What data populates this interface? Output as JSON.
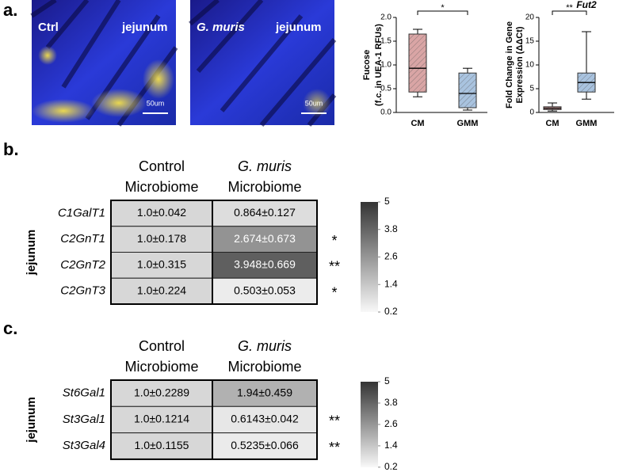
{
  "panel_a": {
    "label": "a.",
    "images": [
      {
        "left_label": "Ctrl",
        "right_label": "jejunum",
        "scale_bar": "50um"
      },
      {
        "left_label": "G. muris",
        "right_label": "jejunum",
        "scale_bar": "50um"
      }
    ],
    "fucose_plot": {
      "ylabel_1": "Fucose",
      "ylabel_2": "(f.c. in UEA-1 RFUs)",
      "categories": [
        "CM",
        "GMM"
      ],
      "ylim": [
        0,
        2.0
      ],
      "yticks": [
        {
          "value": 0,
          "label": "0.0"
        },
        {
          "value": 0.5,
          "label": "0.5"
        },
        {
          "value": 1.0,
          "label": "1.0"
        },
        {
          "value": 1.5,
          "label": "1.5"
        },
        {
          "value": 2.0,
          "label": "2.0"
        }
      ],
      "boxes": [
        {
          "min": 0.33,
          "q1": 0.43,
          "median": 0.93,
          "q3": 1.65,
          "max": 1.75,
          "color": "#d9a5a5"
        },
        {
          "min": 0.05,
          "q1": 0.1,
          "median": 0.4,
          "q3": 0.83,
          "max": 0.93,
          "color": "#a9c3df"
        }
      ],
      "significance": "*"
    },
    "fut2_plot": {
      "title": "Fut2",
      "ylabel_1": "Fold Change in Gene",
      "ylabel_2": "Expression (ΔΔCt)",
      "categories": [
        "CM",
        "GMM"
      ],
      "ylim": [
        0,
        20
      ],
      "yticks": [
        0,
        5,
        10,
        15,
        20
      ],
      "boxes": [
        {
          "min": 0.3,
          "q1": 0.6,
          "median": 0.9,
          "q3": 1.2,
          "max": 2.0,
          "color": "#d9a5a5"
        },
        {
          "min": 2.8,
          "q1": 4.3,
          "median": 6.3,
          "q3": 8.3,
          "max": 17,
          "color": "#a9c3df"
        }
      ],
      "significance": "**"
    }
  },
  "panel_b": {
    "label": "b.",
    "row_group": "jejunum",
    "columns": [
      {
        "line1": "Control",
        "line2": "Microbiome"
      },
      {
        "line1": "G. muris",
        "line2": "Microbiome"
      }
    ],
    "rows": [
      {
        "gene": "C1GalT1",
        "cells": [
          "1.0±0.042",
          "0.864±0.127"
        ],
        "means": [
          1.0,
          0.864
        ]
      },
      {
        "gene": "C2GnT1",
        "cells": [
          "1.0±0.178",
          "2.674±0.673"
        ],
        "means": [
          1.0,
          2.674
        ],
        "significance": "*"
      },
      {
        "gene": "C2GnT2",
        "cells": [
          "1.0±0.315",
          "3.948±0.669"
        ],
        "means": [
          1.0,
          3.948
        ],
        "significance": "**"
      },
      {
        "gene": "C2GnT3",
        "cells": [
          "1.0±0.224",
          "0.503±0.053"
        ],
        "means": [
          1.0,
          0.503
        ],
        "significance": "*"
      }
    ],
    "color_range": [
      0.2,
      5
    ],
    "colorbar_ticks": [
      5,
      3.8,
      2.6,
      1.4,
      0.2
    ]
  },
  "panel_c": {
    "label": "c.",
    "row_group": "jejunum",
    "columns": [
      {
        "line1": "Control",
        "line2": "Microbiome"
      },
      {
        "line1": "G. muris",
        "line2": "Microbiome"
      }
    ],
    "rows": [
      {
        "gene": "St6Gal1",
        "cells": [
          "1.0±0.2289",
          "1.94±0.459"
        ],
        "means": [
          1.0,
          1.94
        ]
      },
      {
        "gene": "St3Gal1",
        "cells": [
          "1.0±0.1214",
          "0.6143±0.042"
        ],
        "means": [
          1.0,
          0.6143
        ],
        "significance": "**"
      },
      {
        "gene": "St3Gal4",
        "cells": [
          "1.0±0.1155",
          "0.5235±0.066"
        ],
        "means": [
          1.0,
          0.5235
        ],
        "significance": "**"
      }
    ],
    "color_range": [
      0.2,
      5
    ],
    "colorbar_ticks": [
      5,
      3.8,
      2.6,
      1.4,
      0.2
    ]
  }
}
